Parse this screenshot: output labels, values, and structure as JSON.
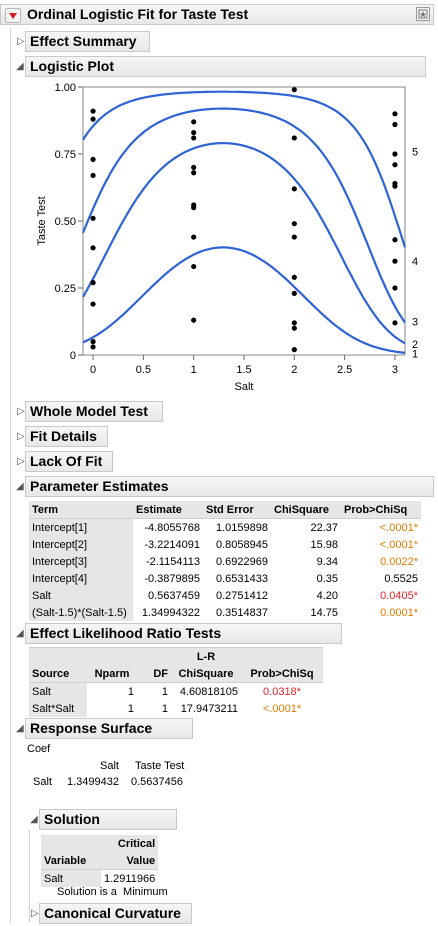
{
  "title": "Ordinal Logistic Fit for Taste Test",
  "sections": {
    "effect_summary": "Effect Summary",
    "logistic_plot": "Logistic Plot",
    "whole_model_test": "Whole Model Test",
    "fit_details": "Fit Details",
    "lack_of_fit": "Lack Of Fit",
    "parameter_estimates": "Parameter Estimates",
    "effect_lr_tests": "Effect Likelihood Ratio Tests",
    "response_surface": "Response Surface",
    "solution": "Solution",
    "canonical_curvature": "Canonical Curvature"
  },
  "chart_data": {
    "type": "line",
    "xlabel": "Salt",
    "ylabel": "Taste Test",
    "xlim": [
      -0.1,
      3.1
    ],
    "ylim": [
      0,
      1
    ],
    "x_ticks": [
      "0",
      "0.5",
      "1",
      "1.5",
      "2",
      "2.5",
      "3"
    ],
    "y_ticks": [
      "0",
      "0.25",
      "0.50",
      "0.75",
      "1.00"
    ],
    "right_axis_labels": [
      "1",
      "2",
      "3",
      "4",
      "5"
    ],
    "grid": false,
    "curve_parameters": {
      "intercepts": [
        -4.8055768,
        -3.2214091,
        -2.1154113,
        -0.3879895
      ],
      "salt": 0.5637456,
      "salt_squared": 1.34994322,
      "center": 1.5
    },
    "points": [
      {
        "x": 0,
        "y": 0.91
      },
      {
        "x": 0,
        "y": 0.88
      },
      {
        "x": 0,
        "y": 0.73
      },
      {
        "x": 0,
        "y": 0.67
      },
      {
        "x": 0,
        "y": 0.51
      },
      {
        "x": 0,
        "y": 0.4
      },
      {
        "x": 0,
        "y": 0.27
      },
      {
        "x": 0,
        "y": 0.19
      },
      {
        "x": 0,
        "y": 0.05
      },
      {
        "x": 0,
        "y": 0.03
      },
      {
        "x": 1,
        "y": 0.87
      },
      {
        "x": 1,
        "y": 0.83
      },
      {
        "x": 1,
        "y": 0.81
      },
      {
        "x": 1,
        "y": 0.7
      },
      {
        "x": 1,
        "y": 0.68
      },
      {
        "x": 1,
        "y": 0.56
      },
      {
        "x": 1,
        "y": 0.55
      },
      {
        "x": 1,
        "y": 0.44
      },
      {
        "x": 1,
        "y": 0.33
      },
      {
        "x": 1,
        "y": 0.13
      },
      {
        "x": 2,
        "y": 0.99
      },
      {
        "x": 2,
        "y": 0.81
      },
      {
        "x": 2,
        "y": 0.62
      },
      {
        "x": 2,
        "y": 0.49
      },
      {
        "x": 2,
        "y": 0.44
      },
      {
        "x": 2,
        "y": 0.29
      },
      {
        "x": 2,
        "y": 0.23
      },
      {
        "x": 2,
        "y": 0.12
      },
      {
        "x": 2,
        "y": 0.1
      },
      {
        "x": 2,
        "y": 0.02
      },
      {
        "x": 3,
        "y": 0.9
      },
      {
        "x": 3,
        "y": 0.86
      },
      {
        "x": 3,
        "y": 0.75
      },
      {
        "x": 3,
        "y": 0.71
      },
      {
        "x": 3,
        "y": 0.64
      },
      {
        "x": 3,
        "y": 0.63
      },
      {
        "x": 3,
        "y": 0.43
      },
      {
        "x": 3,
        "y": 0.35
      },
      {
        "x": 3,
        "y": 0.25
      },
      {
        "x": 3,
        "y": 0.12
      }
    ]
  },
  "parameter_estimates": {
    "headers": [
      "Term",
      "Estimate",
      "Std Error",
      "ChiSquare",
      "Prob>ChiSq"
    ],
    "rows": [
      [
        "Intercept[1]",
        "-4.8055768",
        "1.0159898",
        "22.37",
        "<.0001*"
      ],
      [
        "Intercept[2]",
        "-3.2214091",
        "0.8058945",
        "15.98",
        "<.0001*"
      ],
      [
        "Intercept[3]",
        "-2.1154113",
        "0.6922969",
        "9.34",
        "0.0022*"
      ],
      [
        "Intercept[4]",
        "-0.3879895",
        "0.6531433",
        "0.35",
        "0.5525"
      ],
      [
        "Salt",
        "0.5637459",
        "0.2751412",
        "4.20",
        "0.0405*"
      ],
      [
        "(Salt-1.5)*(Salt-1.5)",
        "1.34994322",
        "0.3514837",
        "14.75",
        "0.0001*"
      ]
    ],
    "p_colors": [
      "#e07b00",
      "#e07b00",
      "#e07b00",
      "#000000",
      "#e8222a",
      "#e07b00"
    ]
  },
  "lr_tests": {
    "header_top": "L-R",
    "headers": [
      "Source",
      "Nparm",
      "DF",
      "ChiSquare",
      "Prob>ChiSq"
    ],
    "rows": [
      [
        "Salt",
        "1",
        "1",
        "4.60818105",
        "0.0318*"
      ],
      [
        "Salt*Salt",
        "1",
        "1",
        "17.9473211",
        "<.0001*"
      ]
    ],
    "p_colors": [
      "#e8222a",
      "#e07b00"
    ]
  },
  "response_surface": {
    "coef_label": "Coef",
    "col_headers": [
      "Salt",
      "Taste Test"
    ],
    "row_label": "Salt",
    "values": [
      "1.3499432",
      "0.5637456"
    ]
  },
  "solution": {
    "header_top": "Critical",
    "headers": [
      "Variable",
      "Value"
    ],
    "row": [
      "Salt",
      "1.2911966"
    ],
    "note": "Solution is a  Minimum"
  }
}
